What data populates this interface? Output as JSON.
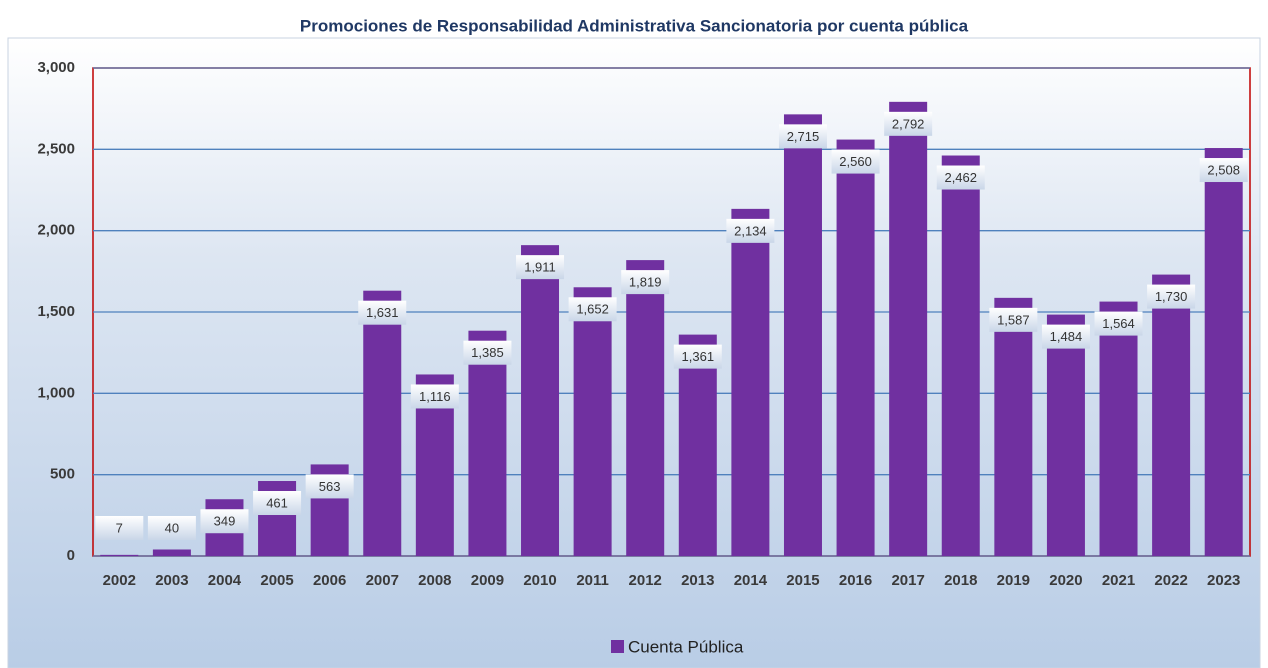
{
  "chart_data": {
    "type": "bar",
    "title": "Promociones de Responsabilidad Administrativa Sancionatoria por cuenta pública",
    "categories": [
      "2002",
      "2003",
      "2004",
      "2005",
      "2006",
      "2007",
      "2008",
      "2009",
      "2010",
      "2011",
      "2012",
      "2013",
      "2014",
      "2015",
      "2016",
      "2017",
      "2018",
      "2019",
      "2020",
      "2021",
      "2022",
      "2023"
    ],
    "series": [
      {
        "name": "Cuenta Pública",
        "color": "#7030a0",
        "values": [
          7,
          40,
          349,
          461,
          563,
          1631,
          1116,
          1385,
          1911,
          1652,
          1819,
          1361,
          2134,
          2715,
          2560,
          2792,
          2462,
          1587,
          1484,
          1564,
          1730,
          2508
        ],
        "value_labels": [
          "7",
          "40",
          "349",
          "461",
          "563",
          "1,631",
          "1,116",
          "1,385",
          "1,911",
          "1,652",
          "1,819",
          "1,361",
          "2,134",
          "2,715",
          "2,560",
          "2,792",
          "2,462",
          "1,587",
          "1,484",
          "1,564",
          "1,730",
          "2,508"
        ]
      }
    ],
    "ylim": [
      0,
      3000
    ],
    "yticks": [
      0,
      500,
      {
        "value": 1000,
        "label": "1,000"
      },
      {
        "value": 1500,
        "label": "1,500"
      },
      {
        "value": 2000,
        "label": "2,000"
      },
      {
        "value": 2500,
        "label": "2,500"
      },
      {
        "value": 3000,
        "label": "3,000"
      }
    ],
    "grid": true,
    "legend": "bottom"
  }
}
